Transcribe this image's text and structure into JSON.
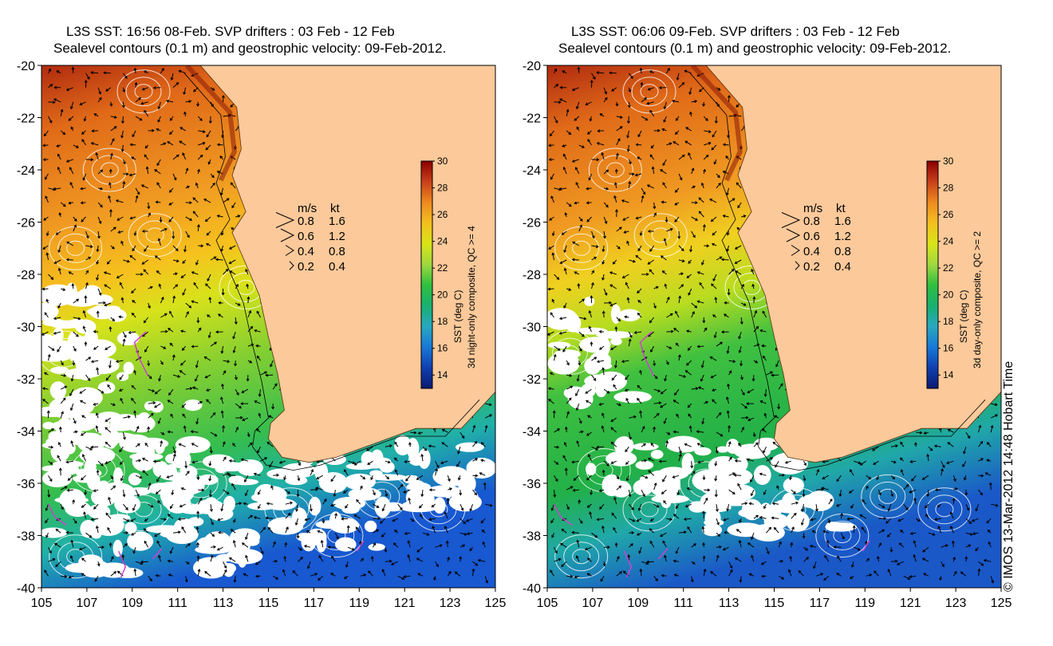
{
  "colors": {
    "land": "#fbc99a",
    "cloud": "#ffffff",
    "contour": "#ffffff",
    "arrow": "#000000",
    "drifter": "#d040d0",
    "coast": "#000000"
  },
  "colorbar": {
    "min": 13,
    "max": 30,
    "ticks": [
      "30",
      "28",
      "26",
      "24",
      "22",
      "20",
      "18",
      "16",
      "14"
    ],
    "label": "SST (deg C)",
    "stops": [
      "#8b0000",
      "#c8401a",
      "#ee8a20",
      "#f3c020",
      "#d9e418",
      "#9fd840",
      "#30c040",
      "#18b070",
      "#28a8c0",
      "#1878d8",
      "#1040b0",
      "#0a1a70"
    ]
  },
  "axes": {
    "x_ticks": [
      "105",
      "107",
      "109",
      "111",
      "113",
      "115",
      "117",
      "119",
      "121",
      "123",
      "125"
    ],
    "y_ticks": [
      "-20",
      "-22",
      "-24",
      "-26",
      "-28",
      "-30",
      "-32",
      "-34",
      "-36",
      "-38",
      "-40"
    ],
    "xlim": [
      105,
      125
    ],
    "ylim": [
      -40,
      -20
    ]
  },
  "legend": {
    "header_ms": "m/s",
    "header_kt": "kt",
    "rows": [
      {
        "ms": "0.8",
        "kt": "1.6"
      },
      {
        "ms": "0.6",
        "kt": "1.2"
      },
      {
        "ms": "0.4",
        "kt": "0.8"
      },
      {
        "ms": "0.2",
        "kt": "0.4"
      }
    ]
  },
  "panels": [
    {
      "title_line1": "L3S SST: 16:56 08-Feb. SVP drifters : 03 Feb - 12 Feb",
      "title_line2": "Sealevel contours (0.1 m) and geostrophic velocity: 09-Feb-2012.",
      "composite_label": "3d night-only composite, QC >= 4"
    },
    {
      "title_line1": "L3S SST: 06:06 09-Feb. SVP drifters : 03 Feb - 12 Feb",
      "title_line2": "Sealevel contours (0.1 m) and geostrophic velocity: 09-Feb-2012.",
      "composite_label": "3d day-only composite, QC >= 2"
    }
  ],
  "credit": "© IMOS 13-Mar-2012 14:48 Hobart Time"
}
